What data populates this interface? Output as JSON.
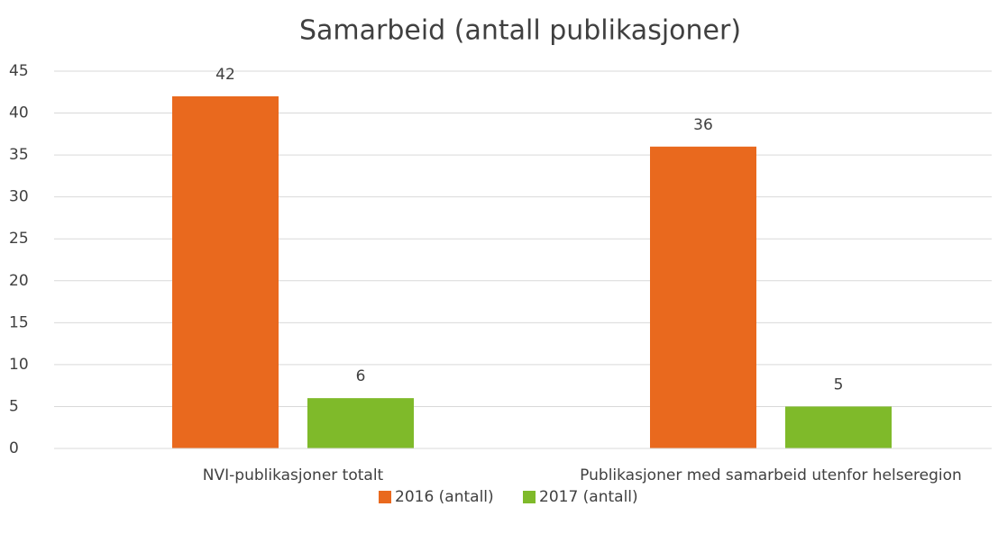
{
  "chart_data": {
    "type": "bar",
    "title": "Samarbeid (antall publikasjoner)",
    "categories": [
      "NVI-publikasjoner totalt",
      "Publikasjoner med samarbeid utenfor helseregion"
    ],
    "series": [
      {
        "name": "2016 (antall)",
        "color": "#e9691e",
        "values": [
          42,
          36
        ]
      },
      {
        "name": "2017 (antall)",
        "color": "#7fba2a",
        "values": [
          6,
          5
        ]
      }
    ],
    "ylim": [
      0,
      45
    ],
    "yticks": [
      0,
      5,
      10,
      15,
      20,
      25,
      30,
      35,
      40,
      45
    ],
    "grid": true,
    "legend": "bottom",
    "data_labels": true
  }
}
